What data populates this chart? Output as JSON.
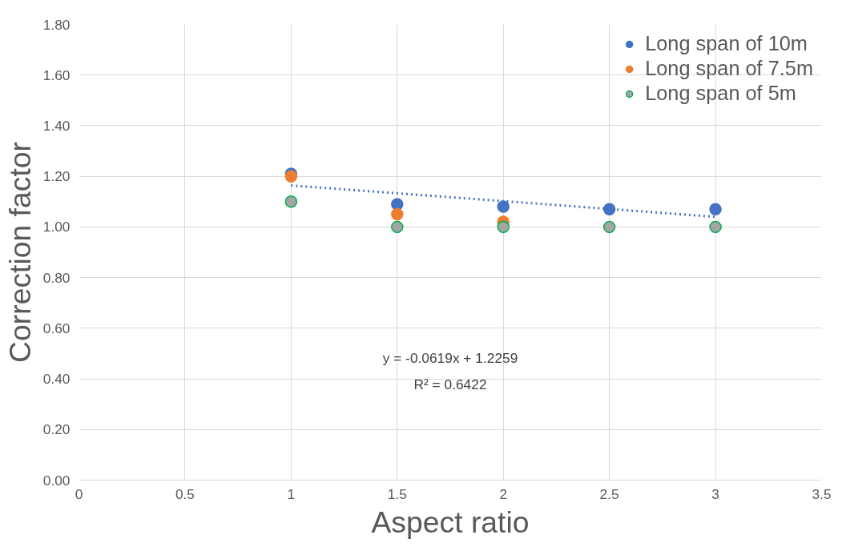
{
  "chart_data": {
    "type": "scatter",
    "xlabel": "Aspect ratio",
    "ylabel": "Correction factor",
    "x": [
      1,
      1.5,
      2,
      2.5,
      3
    ],
    "series": [
      {
        "name": "Long span of 10m",
        "color": "#4472c4",
        "values": [
          1.21,
          1.09,
          1.08,
          1.07,
          1.07
        ]
      },
      {
        "name": "Long span of 7.5m",
        "color": "#ed7d31",
        "values": [
          1.2,
          1.05,
          1.02,
          null,
          null
        ]
      },
      {
        "name": "Long span of 5m",
        "color": "#a5a5a5",
        "values": [
          1.1,
          1.0,
          1.0,
          1.0,
          1.0
        ]
      },
      {
        "type": "line",
        "color": "#4472c4",
        "line_style": "dotted",
        "marker": "none",
        "x": [
          1,
          3
        ],
        "values": [
          1.164,
          1.04
        ]
      }
    ],
    "xlim": [
      0,
      3.5
    ],
    "xticks": [
      0,
      0.5,
      1,
      1.5,
      2,
      2.5,
      3,
      3.5
    ],
    "ylim": [
      0,
      1.8
    ],
    "yticks": [
      {
        "value": 0,
        "label": "0.00"
      },
      {
        "value": 0.2,
        "label": "0.20"
      },
      {
        "value": 0.4,
        "label": "0.40"
      },
      {
        "value": 0.6,
        "label": "0.60"
      },
      {
        "value": 0.8,
        "label": "0.80"
      },
      {
        "value": 1,
        "label": "1.00"
      },
      {
        "value": 1.2,
        "label": "1.20"
      },
      {
        "value": 1.4,
        "label": "1.40"
      },
      {
        "value": 1.6,
        "label": "1.60"
      },
      {
        "value": 1.8,
        "label": "1.80"
      }
    ],
    "annotations": [
      "y = -0.0619x + 1.2259",
      "R² = 0.6422"
    ],
    "grid": true,
    "legend": "top right",
    "marker": "circle"
  }
}
